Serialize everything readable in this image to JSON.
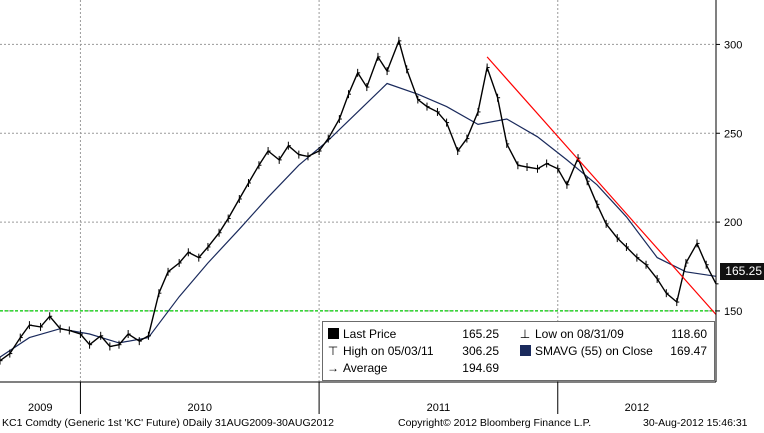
{
  "chart_data": {
    "type": "line",
    "title": "",
    "xlabel": "",
    "ylabel": "",
    "x_tick_labels": [
      "2009",
      "2010",
      "2011",
      "2012"
    ],
    "y_tick_labels": [
      "150",
      "200",
      "250",
      "300"
    ],
    "ylim": [
      110,
      325
    ],
    "xlim": [
      "2009-08-31",
      "2012-08-30"
    ],
    "grid": true,
    "series": [
      {
        "name": "Last Price",
        "color": "#000000",
        "x": [
          "2009-08-31",
          "2009-09-15",
          "2009-10-01",
          "2009-10-15",
          "2009-11-01",
          "2009-11-15",
          "2009-12-01",
          "2009-12-15",
          "2010-01-01",
          "2010-01-15",
          "2010-02-01",
          "2010-02-15",
          "2010-03-01",
          "2010-03-15",
          "2010-04-01",
          "2010-04-15",
          "2010-05-01",
          "2010-05-15",
          "2010-06-01",
          "2010-06-15",
          "2010-07-01",
          "2010-07-15",
          "2010-08-01",
          "2010-08-15",
          "2010-09-01",
          "2010-09-15",
          "2010-10-01",
          "2010-10-15",
          "2010-11-01",
          "2010-11-15",
          "2010-12-01",
          "2010-12-15",
          "2011-01-01",
          "2011-01-15",
          "2011-02-01",
          "2011-02-15",
          "2011-03-01",
          "2011-03-15",
          "2011-04-01",
          "2011-04-15",
          "2011-05-03",
          "2011-05-15",
          "2011-06-01",
          "2011-06-15",
          "2011-07-01",
          "2011-07-15",
          "2011-08-01",
          "2011-08-15",
          "2011-09-01",
          "2011-09-15",
          "2011-10-01",
          "2011-10-15",
          "2011-11-01",
          "2011-11-15",
          "2011-12-01",
          "2011-12-15",
          "2012-01-01",
          "2012-01-15",
          "2012-02-01",
          "2012-02-15",
          "2012-03-01",
          "2012-03-15",
          "2012-04-01",
          "2012-04-15",
          "2012-05-01",
          "2012-05-15",
          "2012-06-01",
          "2012-06-15",
          "2012-07-01",
          "2012-07-15",
          "2012-08-01",
          "2012-08-15",
          "2012-08-30"
        ],
        "values": [
          122,
          126,
          135,
          142,
          141,
          147,
          140,
          139,
          137,
          131,
          136,
          130,
          131,
          137,
          133,
          136,
          160,
          172,
          177,
          183,
          180,
          186,
          194,
          202,
          213,
          222,
          232,
          240,
          235,
          243,
          238,
          237,
          240,
          247,
          258,
          272,
          284,
          276,
          293,
          285,
          302,
          286,
          269,
          265,
          262,
          256,
          240,
          247,
          262,
          287,
          270,
          244,
          232,
          231,
          230,
          233,
          230,
          221,
          236,
          223,
          210,
          199,
          191,
          186,
          180,
          176,
          168,
          160,
          155,
          177,
          188,
          176,
          165.25
        ]
      },
      {
        "name": "SMAVG (55) on Close",
        "color": "#1a2a5c",
        "x": [
          "2009-08-31",
          "2009-10-15",
          "2009-12-01",
          "2010-01-15",
          "2010-03-01",
          "2010-04-15",
          "2010-06-01",
          "2010-07-15",
          "2010-09-01",
          "2010-10-15",
          "2010-12-01",
          "2011-01-15",
          "2011-03-01",
          "2011-04-15",
          "2011-06-01",
          "2011-07-15",
          "2011-09-01",
          "2011-10-15",
          "2011-12-01",
          "2012-01-15",
          "2012-03-01",
          "2012-04-15",
          "2012-06-01",
          "2012-07-15",
          "2012-08-30"
        ],
        "values": [
          124,
          135,
          140,
          137,
          132,
          135,
          158,
          177,
          196,
          214,
          232,
          246,
          262,
          278,
          272,
          265,
          255,
          258,
          248,
          235,
          221,
          203,
          180,
          172,
          169.47
        ]
      },
      {
        "name": "Trend line",
        "color": "#ff0000",
        "x": [
          "2011-09-15",
          "2012-08-30"
        ],
        "values": [
          293,
          148
        ]
      },
      {
        "name": "Support level",
        "color": "#00cc00",
        "x": [
          "2009-08-31",
          "2012-08-30"
        ],
        "values": [
          150,
          150
        ]
      }
    ],
    "price_tag": "165.25",
    "legend": {
      "position": "bottom-right",
      "rows": [
        {
          "label": "Last Price",
          "value": "165.25"
        },
        {
          "label": "Low on 08/31/09",
          "value": "118.60"
        },
        {
          "label": "High on 05/03/11",
          "value": "306.25"
        },
        {
          "label": "SMAVG (55) on Close",
          "value": "169.47"
        },
        {
          "label": "Average",
          "value": "194.69"
        }
      ]
    }
  },
  "footer": {
    "left": "KC1 Comdty (Generic 1st 'KC' Future)  0Daily 31AUG2009-30AUG2012",
    "center": "Copyright© 2012 Bloomberg Finance L.P.",
    "right": "30-Aug-2012 15:46:31"
  }
}
